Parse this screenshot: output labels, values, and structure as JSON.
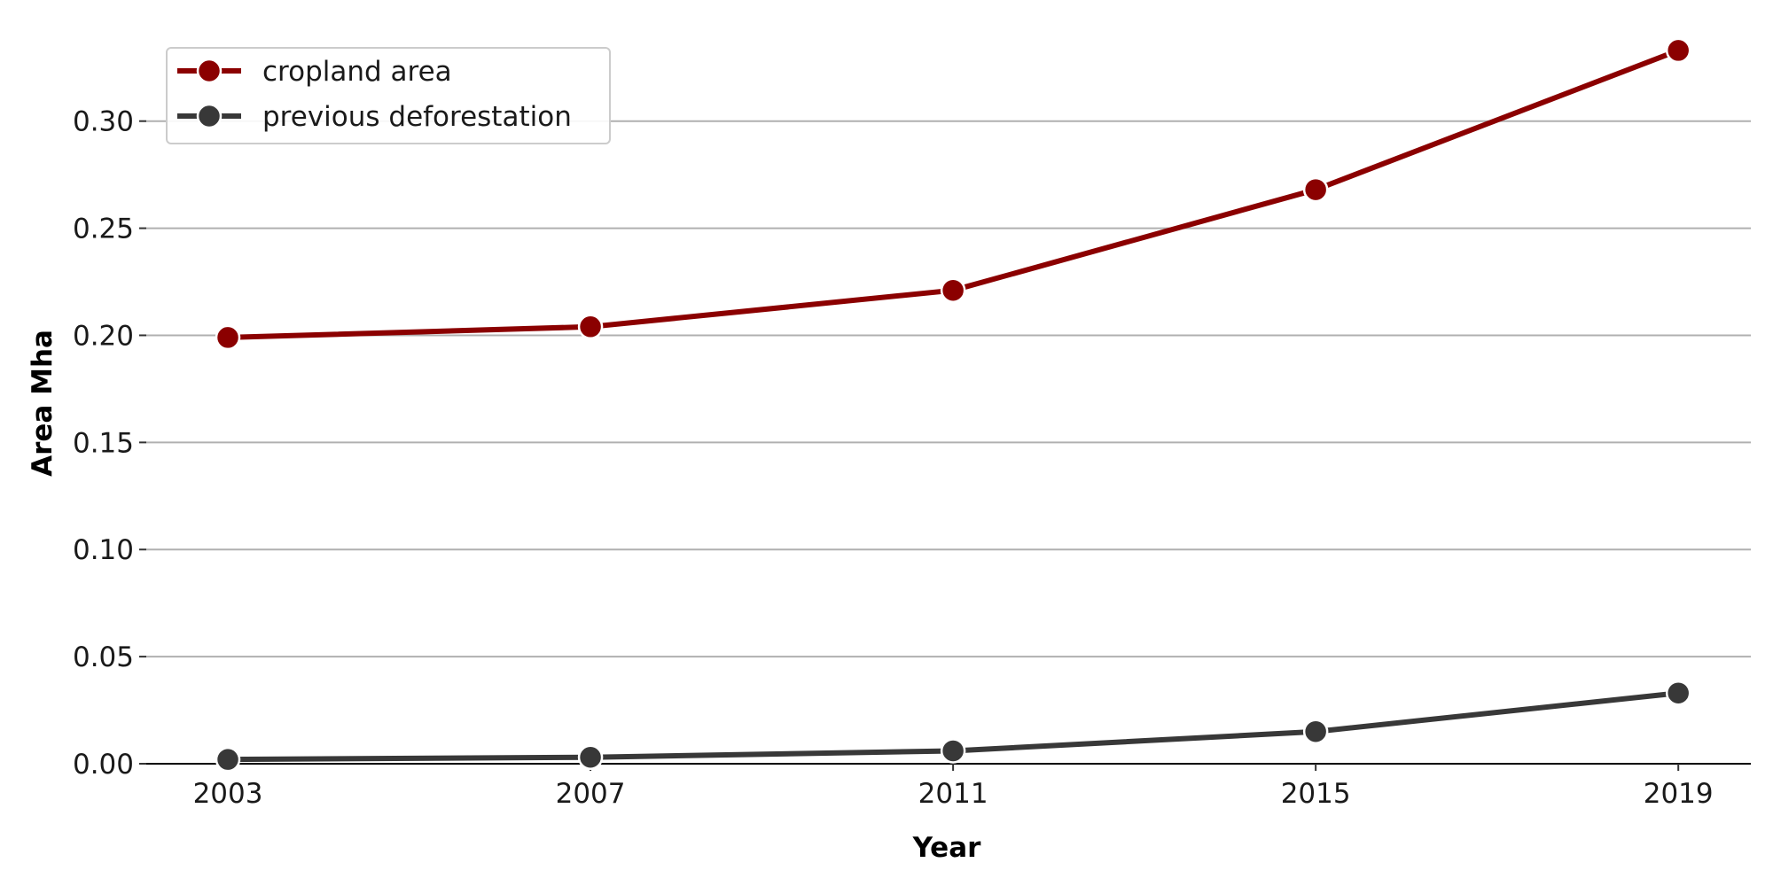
{
  "chart_data": {
    "type": "line",
    "title": "",
    "xlabel": "Year",
    "ylabel": "Area Mha",
    "x": [
      2003,
      2007,
      2011,
      2015,
      2019
    ],
    "xticks": [
      "2003",
      "2007",
      "2011",
      "2015",
      "2019"
    ],
    "xlim": [
      2002.1,
      2019.8
    ],
    "ylim": [
      0,
      0.34
    ],
    "yticks": [
      0.0,
      0.05,
      0.1,
      0.15,
      0.2,
      0.25,
      0.3
    ],
    "ytick_labels": [
      "0.00",
      "0.05",
      "0.10",
      "0.15",
      "0.20",
      "0.25",
      "0.30"
    ],
    "grid": "horizontal",
    "legend": "top-left",
    "series": [
      {
        "name": "cropland area",
        "color": "#8b0000",
        "values": [
          0.199,
          0.204,
          0.221,
          0.268,
          0.333
        ]
      },
      {
        "name": "previous deforestation",
        "color": "#383838",
        "values": [
          0.002,
          0.003,
          0.006,
          0.015,
          0.033
        ]
      }
    ]
  }
}
